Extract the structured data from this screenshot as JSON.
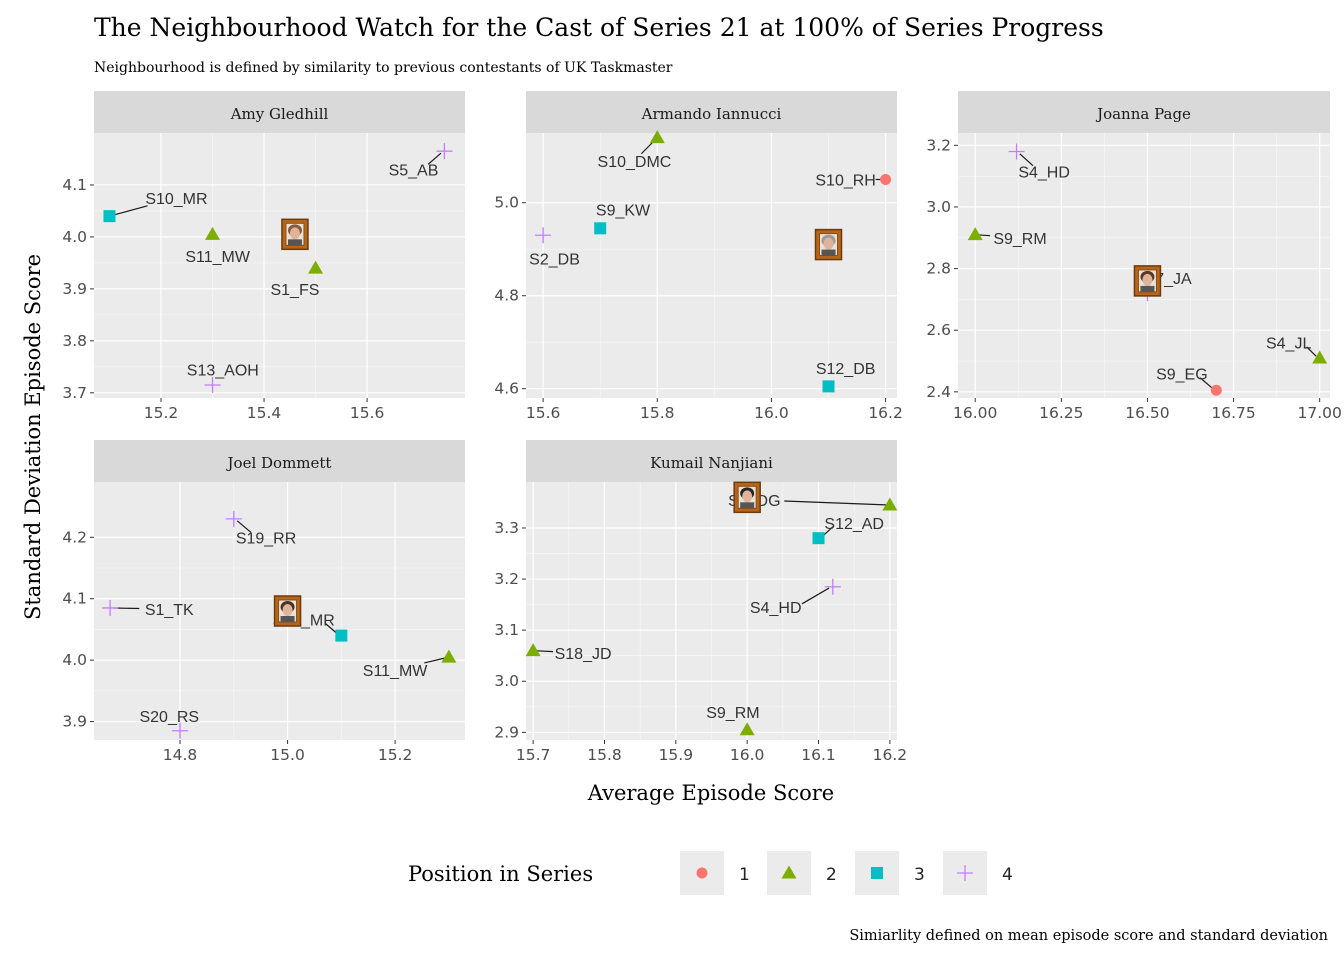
{
  "title": "The Neighbourhood Watch for the Cast of Series 21 at 100% of Series Progress",
  "subtitle": "Neighbourhood is defined by similarity to previous contestants of UK Taskmaster",
  "caption": "Simiarlity defined on mean episode score and standard deviation",
  "colors": {
    "panel_bg": "#ebebeb",
    "strip_bg": "#d9d9d9",
    "grid_major": "#ffffff",
    "pos1": "#F8766D",
    "pos2": "#7CAE00",
    "pos3": "#00BFC4",
    "pos4": "#C77CFF"
  },
  "chart_data": {
    "type": "scatter",
    "xlabel": "Average Episode Score",
    "ylabel": "Standard Deviation Episode Score",
    "legend": {
      "title": "Position in Series",
      "position": "bottom",
      "items": [
        {
          "label": "1",
          "shape": "circle",
          "color": "#F8766D"
        },
        {
          "label": "2",
          "shape": "triangle",
          "color": "#7CAE00"
        },
        {
          "label": "3",
          "shape": "square",
          "color": "#00BFC4"
        },
        {
          "label": "4",
          "shape": "plus",
          "color": "#C77CFF"
        }
      ]
    },
    "panels": [
      {
        "name": "Amy Gledhill",
        "xlim": [
          15.07,
          15.79
        ],
        "ylim": [
          3.69,
          4.2
        ],
        "xticks": [
          {
            "v": 15.2,
            "label": "15.2"
          },
          {
            "v": 15.4,
            "label": "15.4"
          },
          {
            "v": 15.6,
            "label": "15.6"
          }
        ],
        "yticks": [
          {
            "v": 3.7,
            "label": "3.7"
          },
          {
            "v": 3.8,
            "label": "3.8"
          },
          {
            "v": 3.9,
            "label": "3.9"
          },
          {
            "v": 4.0,
            "label": "4.0"
          },
          {
            "v": 4.1,
            "label": "4.1"
          }
        ],
        "focus": {
          "x": 15.46,
          "y": 4.005
        },
        "points": [
          {
            "label": "S10_MR",
            "x": 15.1,
            "y": 4.04,
            "pos": 3,
            "lx": 15.23,
            "ly": 4.075
          },
          {
            "label": "S11_MW",
            "x": 15.3,
            "y": 4.005,
            "pos": 2,
            "lx": 15.31,
            "ly": 3.963
          },
          {
            "label": "S1_FS",
            "x": 15.5,
            "y": 3.94,
            "pos": 2,
            "lx": 15.46,
            "ly": 3.9
          },
          {
            "label": "S5_AB",
            "x": 15.75,
            "y": 4.165,
            "pos": 4,
            "lx": 15.69,
            "ly": 4.13
          },
          {
            "label": "S13_AOH",
            "x": 15.3,
            "y": 3.715,
            "pos": 4,
            "lx": 15.32,
            "ly": 3.745
          }
        ]
      },
      {
        "name": "Armando Iannucci",
        "xlim": [
          15.57,
          16.22
        ],
        "ylim": [
          4.58,
          5.15
        ],
        "xticks": [
          {
            "v": 15.6,
            "label": "15.6"
          },
          {
            "v": 15.8,
            "label": "15.8"
          },
          {
            "v": 16.0,
            "label": "16.0"
          },
          {
            "v": 16.2,
            "label": "16.2"
          }
        ],
        "yticks": [
          {
            "v": 4.6,
            "label": "4.6"
          },
          {
            "v": 4.8,
            "label": "4.8"
          },
          {
            "v": 5.0,
            "label": "5.0"
          }
        ],
        "focus": {
          "x": 16.1,
          "y": 4.91
        },
        "points": [
          {
            "label": "S10_DMC",
            "x": 15.8,
            "y": 5.14,
            "pos": 2,
            "lx": 15.76,
            "ly": 5.09
          },
          {
            "label": "S10_RH",
            "x": 16.2,
            "y": 5.05,
            "pos": 1,
            "lx": 16.13,
            "ly": 5.05
          },
          {
            "label": "S9_KW",
            "x": 15.7,
            "y": 4.945,
            "pos": 3,
            "lx": 15.74,
            "ly": 4.985
          },
          {
            "label": "S2_DB",
            "x": 15.6,
            "y": 4.93,
            "pos": 4,
            "lx": 15.62,
            "ly": 4.88
          },
          {
            "label": "S12_DB",
            "x": 16.1,
            "y": 4.605,
            "pos": 3,
            "lx": 16.13,
            "ly": 4.645
          }
        ]
      },
      {
        "name": "Joanna Page",
        "xlim": [
          15.95,
          17.03
        ],
        "ylim": [
          2.38,
          3.24
        ],
        "xticks": [
          {
            "v": 16.0,
            "label": "16.00"
          },
          {
            "v": 16.25,
            "label": "16.25"
          },
          {
            "v": 16.5,
            "label": "16.50"
          },
          {
            "v": 16.75,
            "label": "16.75"
          },
          {
            "v": 17.0,
            "label": "17.00"
          }
        ],
        "yticks": [
          {
            "v": 2.4,
            "label": "2.4"
          },
          {
            "v": 2.6,
            "label": "2.6"
          },
          {
            "v": 2.8,
            "label": "2.8"
          },
          {
            "v": 3.0,
            "label": "3.0"
          },
          {
            "v": 3.2,
            "label": "3.2"
          }
        ],
        "focus": {
          "x": 16.5,
          "y": 2.76
        },
        "points": [
          {
            "label": "S4_HD",
            "x": 16.12,
            "y": 3.18,
            "pos": 4,
            "lx": 16.2,
            "ly": 3.115
          },
          {
            "label": "S9_RM",
            "x": 16.0,
            "y": 2.91,
            "pos": 2,
            "lx": 16.13,
            "ly": 2.9
          },
          {
            "label": "S7_JA",
            "x": 16.5,
            "y": 2.72,
            "pos": 4,
            "lx": 16.56,
            "ly": 2.77
          },
          {
            "label": "S4_JL",
            "x": 17.0,
            "y": 2.51,
            "pos": 2,
            "lx": 16.91,
            "ly": 2.56
          },
          {
            "label": "S9_EG",
            "x": 16.7,
            "y": 2.405,
            "pos": 1,
            "lx": 16.6,
            "ly": 2.46
          }
        ]
      },
      {
        "name": "Joel Dommett",
        "xlim": [
          14.64,
          15.33
        ],
        "ylim": [
          3.87,
          4.29
        ],
        "xticks": [
          {
            "v": 14.8,
            "label": "14.8"
          },
          {
            "v": 15.0,
            "label": "15.0"
          },
          {
            "v": 15.2,
            "label": "15.2"
          }
        ],
        "yticks": [
          {
            "v": 3.9,
            "label": "3.9"
          },
          {
            "v": 4.0,
            "label": "4.0"
          },
          {
            "v": 4.1,
            "label": "4.1"
          },
          {
            "v": 4.2,
            "label": "4.2"
          }
        ],
        "focus": {
          "x": 15.0,
          "y": 4.08
        },
        "points": [
          {
            "label": "S19_RR",
            "x": 14.9,
            "y": 4.23,
            "pos": 4,
            "lx": 14.96,
            "ly": 4.2
          },
          {
            "label": "S1_TK",
            "x": 14.67,
            "y": 4.085,
            "pos": 4,
            "lx": 14.78,
            "ly": 4.083
          },
          {
            "label": "S10_MR",
            "x": 15.1,
            "y": 4.04,
            "pos": 3,
            "lx": 15.03,
            "ly": 4.066
          },
          {
            "label": "S11_MW",
            "x": 15.3,
            "y": 4.005,
            "pos": 2,
            "lx": 15.2,
            "ly": 3.984
          },
          {
            "label": "S20_RS",
            "x": 14.8,
            "y": 3.885,
            "pos": 4,
            "lx": 14.78,
            "ly": 3.909
          }
        ]
      },
      {
        "name": "Kumail Nanjiani",
        "xlim": [
          15.69,
          16.21
        ],
        "ylim": [
          2.885,
          3.39
        ],
        "xticks": [
          {
            "v": 15.7,
            "label": "15.7"
          },
          {
            "v": 15.8,
            "label": "15.8"
          },
          {
            "v": 15.9,
            "label": "15.9"
          },
          {
            "v": 16.0,
            "label": "16.0"
          },
          {
            "v": 16.1,
            "label": "16.1"
          },
          {
            "v": 16.2,
            "label": "16.2"
          }
        ],
        "yticks": [
          {
            "v": 2.9,
            "label": "2.9"
          },
          {
            "v": 3.0,
            "label": "3.0"
          },
          {
            "v": 3.1,
            "label": "3.1"
          },
          {
            "v": 3.2,
            "label": "3.2"
          },
          {
            "v": 3.3,
            "label": "3.3"
          }
        ],
        "focus": {
          "x": 16.0,
          "y": 3.36
        },
        "points": [
          {
            "label": "S5_DG",
            "x": 16.2,
            "y": 3.345,
            "pos": 2,
            "lx": 16.01,
            "ly": 3.355
          },
          {
            "label": "S12_AD",
            "x": 16.1,
            "y": 3.28,
            "pos": 3,
            "lx": 16.15,
            "ly": 3.31
          },
          {
            "label": "S4_HD",
            "x": 16.12,
            "y": 3.185,
            "pos": 4,
            "lx": 16.04,
            "ly": 3.145
          },
          {
            "label": "S18_JD",
            "x": 15.7,
            "y": 3.06,
            "pos": 2,
            "lx": 15.77,
            "ly": 3.055
          },
          {
            "label": "S9_RM",
            "x": 16.0,
            "y": 2.905,
            "pos": 2,
            "lx": 15.98,
            "ly": 2.94
          }
        ]
      }
    ]
  }
}
